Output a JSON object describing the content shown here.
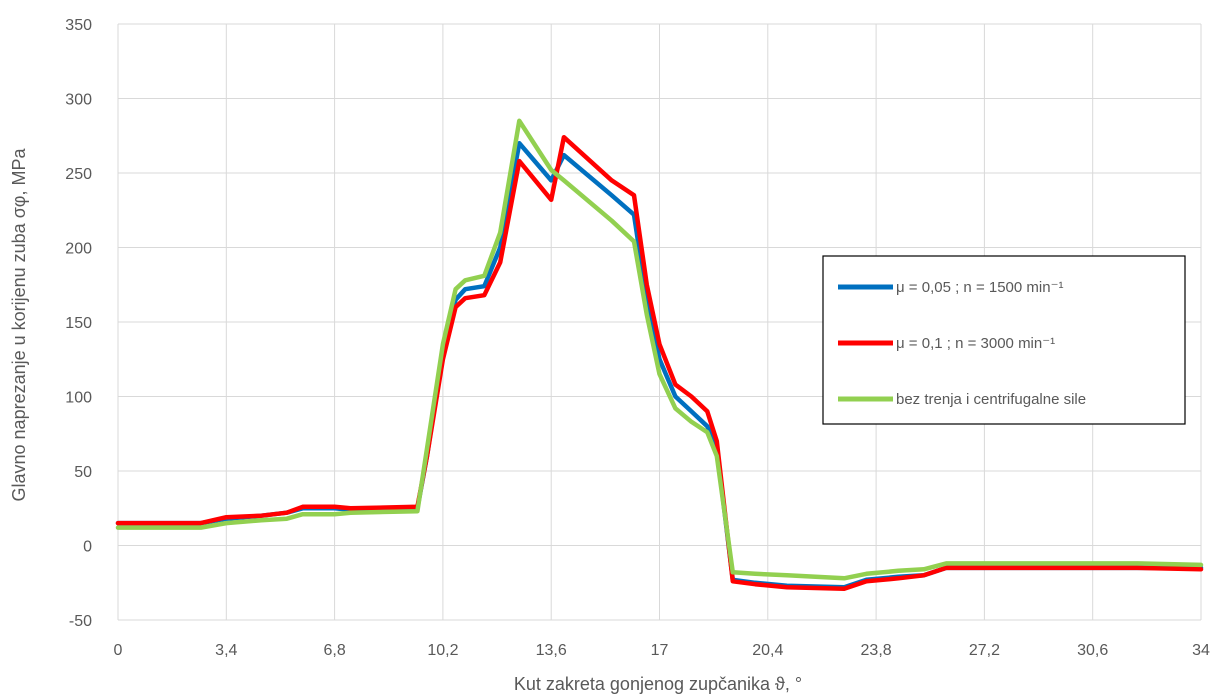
{
  "chart_data": {
    "type": "line",
    "title": "",
    "xlabel": "Kut zakreta gonjenog zupčanika ϑ, °",
    "ylabel": "Glavno naprezanje u korijenu zuba σφ, MPa",
    "xlim": [
      0,
      34
    ],
    "ylim": [
      -50,
      350
    ],
    "x_ticks": [
      "0",
      "3,4",
      "6,8",
      "10,2",
      "13,6",
      "17",
      "20,4",
      "23,8",
      "27,2",
      "30,6",
      "34"
    ],
    "y_ticks": [
      "-50",
      "0",
      "50",
      "100",
      "150",
      "200",
      "250",
      "300",
      "350"
    ],
    "grid": true,
    "legend_position": "right",
    "series": [
      {
        "name": "μ = 0,05 ;    n = 1500 min⁻¹",
        "color": "#0070C0",
        "points": [
          [
            0,
            15
          ],
          [
            2.6,
            15
          ],
          [
            3.4,
            18
          ],
          [
            4.5,
            20
          ],
          [
            5.3,
            22
          ],
          [
            5.8,
            25
          ],
          [
            6.8,
            25
          ],
          [
            7.3,
            24
          ],
          [
            9.4,
            25
          ],
          [
            9.7,
            60
          ],
          [
            10.2,
            130
          ],
          [
            10.6,
            165
          ],
          [
            10.9,
            172
          ],
          [
            11.5,
            174
          ],
          [
            12.0,
            200
          ],
          [
            12.6,
            270
          ],
          [
            13.6,
            245
          ],
          [
            14.0,
            262
          ],
          [
            15.5,
            235
          ],
          [
            16.2,
            222
          ],
          [
            16.6,
            165
          ],
          [
            17.0,
            125
          ],
          [
            17.5,
            100
          ],
          [
            18.0,
            90
          ],
          [
            18.5,
            80
          ],
          [
            18.8,
            65
          ],
          [
            19.3,
            -23
          ],
          [
            20.0,
            -25
          ],
          [
            21.0,
            -27
          ],
          [
            22.8,
            -28
          ],
          [
            23.5,
            -23
          ],
          [
            24.5,
            -21
          ],
          [
            25.3,
            -20
          ],
          [
            26.0,
            -15
          ],
          [
            28.0,
            -15
          ],
          [
            31.0,
            -15
          ],
          [
            32.0,
            -15
          ],
          [
            34,
            -15
          ]
        ]
      },
      {
        "name": "μ = 0,1 ;    n = 3000 min⁻¹",
        "color": "#FF0000",
        "points": [
          [
            0,
            15
          ],
          [
            2.6,
            15
          ],
          [
            3.4,
            19
          ],
          [
            4.5,
            20
          ],
          [
            5.3,
            22
          ],
          [
            5.8,
            26
          ],
          [
            6.8,
            26
          ],
          [
            7.3,
            25
          ],
          [
            9.4,
            26
          ],
          [
            9.7,
            60
          ],
          [
            10.2,
            125
          ],
          [
            10.6,
            160
          ],
          [
            10.9,
            166
          ],
          [
            11.5,
            168
          ],
          [
            12.0,
            190
          ],
          [
            12.6,
            258
          ],
          [
            13.6,
            232
          ],
          [
            14.0,
            274
          ],
          [
            15.5,
            245
          ],
          [
            16.2,
            235
          ],
          [
            16.6,
            175
          ],
          [
            17.0,
            135
          ],
          [
            17.5,
            108
          ],
          [
            18.0,
            100
          ],
          [
            18.5,
            90
          ],
          [
            18.8,
            70
          ],
          [
            19.3,
            -24
          ],
          [
            20.0,
            -26
          ],
          [
            21.0,
            -28
          ],
          [
            22.8,
            -29
          ],
          [
            23.5,
            -24
          ],
          [
            24.5,
            -22
          ],
          [
            25.3,
            -20
          ],
          [
            26.0,
            -15
          ],
          [
            28.0,
            -15
          ],
          [
            31.0,
            -15
          ],
          [
            32.0,
            -15
          ],
          [
            34,
            -16
          ]
        ]
      },
      {
        "name": "bez trenja i centrifugalne sile",
        "color": "#92D050",
        "points": [
          [
            0,
            12
          ],
          [
            2.6,
            12
          ],
          [
            3.4,
            15
          ],
          [
            4.5,
            17
          ],
          [
            5.3,
            18
          ],
          [
            5.8,
            21
          ],
          [
            6.8,
            21
          ],
          [
            7.3,
            22
          ],
          [
            9.4,
            23
          ],
          [
            9.7,
            65
          ],
          [
            10.2,
            135
          ],
          [
            10.6,
            172
          ],
          [
            10.9,
            178
          ],
          [
            11.5,
            181
          ],
          [
            12.0,
            210
          ],
          [
            12.6,
            285
          ],
          [
            13.6,
            252
          ],
          [
            14.0,
            245
          ],
          [
            15.5,
            218
          ],
          [
            16.2,
            204
          ],
          [
            16.6,
            155
          ],
          [
            17.0,
            115
          ],
          [
            17.5,
            92
          ],
          [
            18.0,
            83
          ],
          [
            18.5,
            76
          ],
          [
            18.8,
            60
          ],
          [
            19.3,
            -18
          ],
          [
            20.0,
            -19
          ],
          [
            21.0,
            -20
          ],
          [
            22.8,
            -22
          ],
          [
            23.5,
            -19
          ],
          [
            24.5,
            -17
          ],
          [
            25.3,
            -16
          ],
          [
            26.0,
            -12
          ],
          [
            28.0,
            -12
          ],
          [
            31.0,
            -12
          ],
          [
            32.0,
            -12
          ],
          [
            34,
            -13
          ]
        ]
      }
    ]
  }
}
